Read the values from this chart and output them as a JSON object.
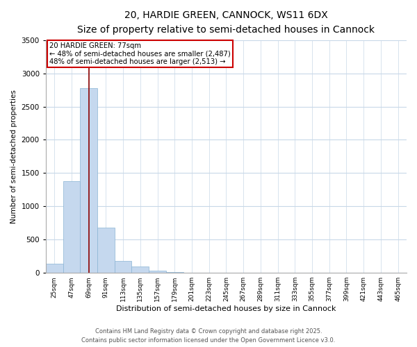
{
  "title": "20, HARDIE GREEN, CANNOCK, WS11 6DX",
  "subtitle": "Size of property relative to semi-detached houses in Cannock",
  "xlabel": "Distribution of semi-detached houses by size in Cannock",
  "ylabel": "Number of semi-detached properties",
  "categories": [
    "25sqm",
    "47sqm",
    "69sqm",
    "91sqm",
    "113sqm",
    "135sqm",
    "157sqm",
    "179sqm",
    "201sqm",
    "223sqm",
    "245sqm",
    "267sqm",
    "289sqm",
    "311sqm",
    "333sqm",
    "355sqm",
    "377sqm",
    "399sqm",
    "421sqm",
    "443sqm",
    "465sqm"
  ],
  "values": [
    140,
    1380,
    2780,
    680,
    175,
    100,
    30,
    10,
    0,
    0,
    0,
    0,
    0,
    0,
    0,
    0,
    0,
    0,
    0,
    0,
    0
  ],
  "bar_color": "#c5d8ee",
  "bar_edge_color": "#8ab4d4",
  "ylim": [
    0,
    3500
  ],
  "yticks": [
    0,
    500,
    1000,
    1500,
    2000,
    2500,
    3000,
    3500
  ],
  "property_label": "20 HARDIE GREEN: 77sqm",
  "pct_smaller": 48,
  "pct_larger": 48,
  "count_smaller": 2487,
  "count_larger": 2513,
  "red_line_x": 2.0,
  "footer1": "Contains HM Land Registry data © Crown copyright and database right 2025.",
  "footer2": "Contains public sector information licensed under the Open Government Licence v3.0.",
  "background_color": "#ffffff",
  "grid_color": "#c8d8e8"
}
